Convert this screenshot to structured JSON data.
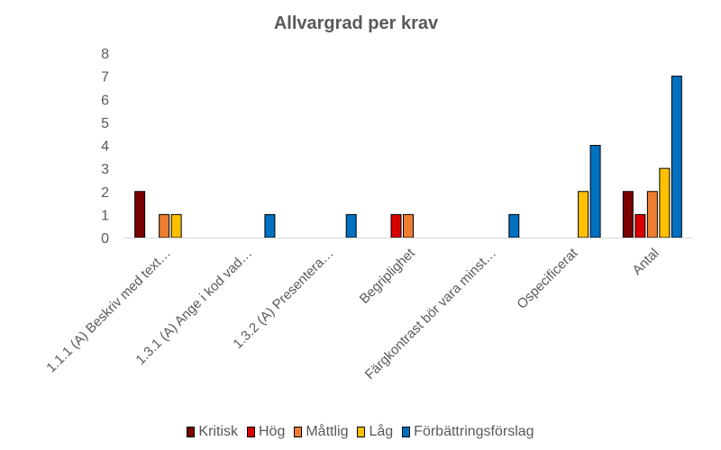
{
  "chart_data": {
    "type": "bar",
    "title": "Allvargrad per krav",
    "xlabel": "",
    "ylabel": "",
    "ylim": [
      0,
      8
    ],
    "yticks": [
      "0",
      "1",
      "2",
      "3",
      "4",
      "5",
      "6",
      "7",
      "8"
    ],
    "grid": false,
    "legend_position": "bottom",
    "categories": [
      "1.1.1 (A) Beskriv med text…",
      "1.3.1 (A) Ange i kod vad…",
      "1.3.2 (A) Presentera…",
      "Begriplighet",
      "Färgkontrast bör vara minst…",
      "Ospecificerat",
      "Antal"
    ],
    "series": [
      {
        "name": "Kritisk",
        "color": "#7B0000",
        "values": [
          2,
          null,
          null,
          null,
          null,
          null,
          2
        ]
      },
      {
        "name": "Hög",
        "color": "#D90000",
        "values": [
          null,
          null,
          null,
          1,
          null,
          null,
          1
        ]
      },
      {
        "name": "Måttlig",
        "color": "#ED7D31",
        "values": [
          1,
          null,
          null,
          1,
          null,
          null,
          2
        ]
      },
      {
        "name": "Låg",
        "color": "#FFC000",
        "values": [
          1,
          null,
          null,
          null,
          null,
          2,
          3
        ]
      },
      {
        "name": "Förbättringsförslag",
        "color": "#0070C0",
        "values": [
          null,
          1,
          1,
          null,
          1,
          4,
          7
        ]
      }
    ]
  }
}
